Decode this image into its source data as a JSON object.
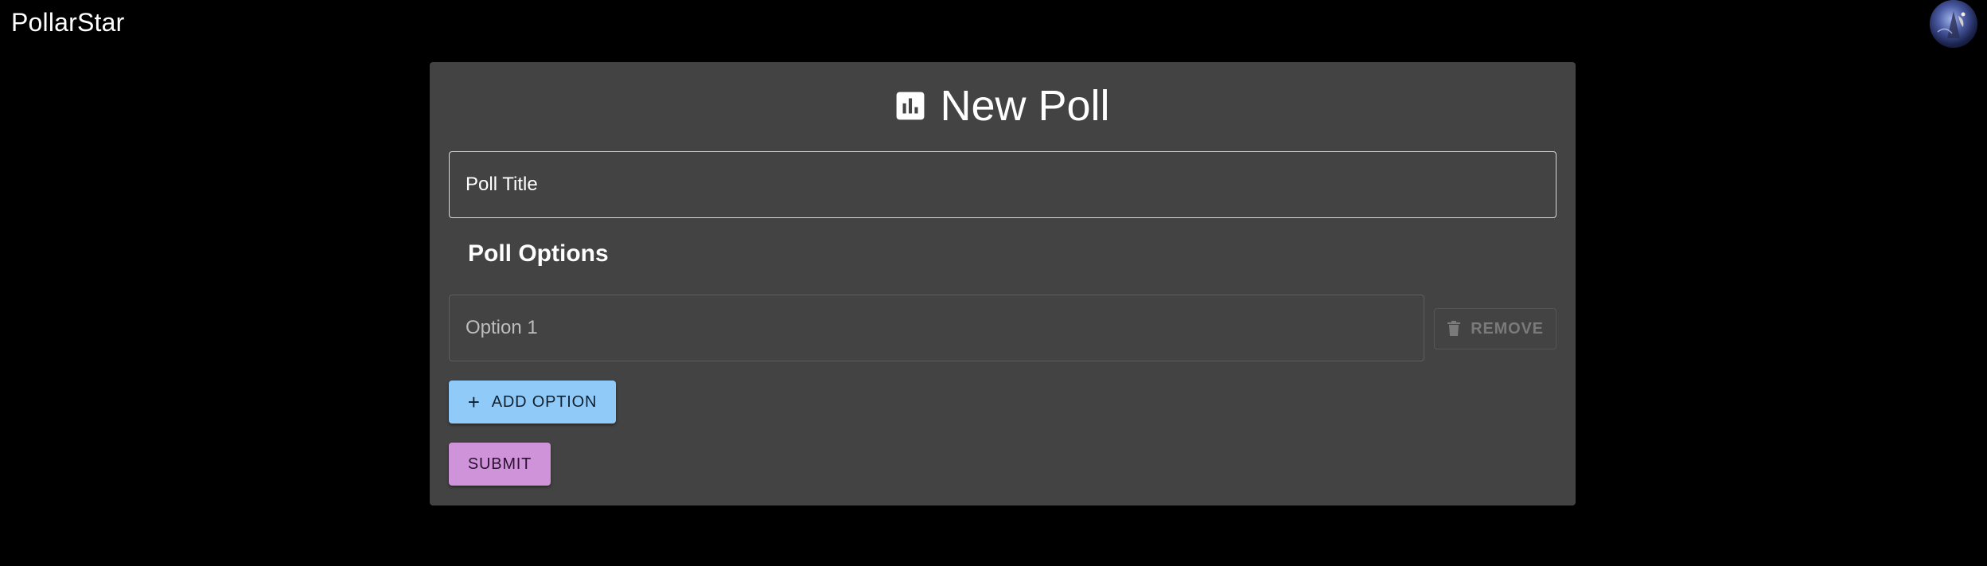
{
  "app": {
    "brand": "PollarStar",
    "avatar_icon": "user-avatar"
  },
  "form": {
    "heading": "New Poll",
    "heading_icon": "bar-chart-icon",
    "title_field": {
      "placeholder": "Poll Title",
      "value": ""
    },
    "options_label": "Poll Options",
    "options": [
      {
        "placeholder": "Option 1",
        "value": "",
        "remove_label": "REMOVE",
        "remove_icon": "trash-icon"
      }
    ],
    "add_option_label": "ADD OPTION",
    "add_option_icon": "plus-icon",
    "submit_label": "SUBMIT"
  },
  "colors": {
    "background": "#000000",
    "card": "#434343",
    "primary": "#90caf9",
    "secondary": "#ce93d8"
  }
}
